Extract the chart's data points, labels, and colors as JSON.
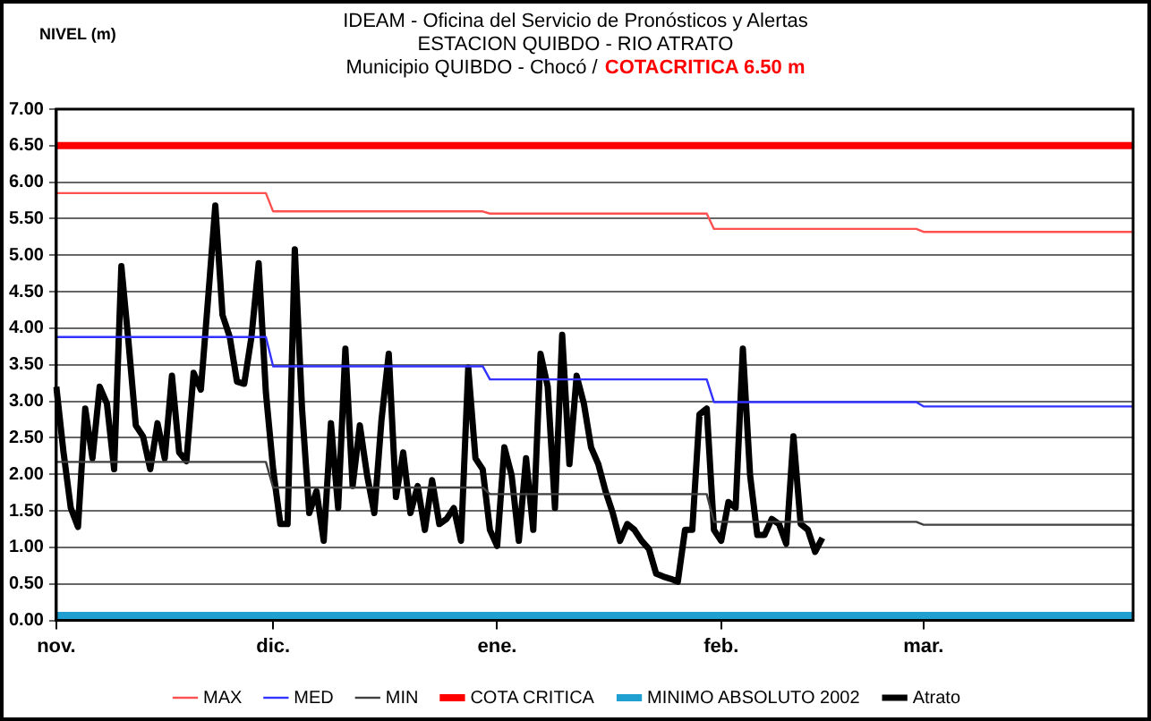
{
  "chart_data": {
    "type": "line",
    "title": "IDEAM - Oficina del Servicio de Pronósticos y Alertas",
    "subtitle": "ESTACION QUIBDO - RIO ATRATO",
    "annotations": [
      "Municipio QUIBDO - Chocó /",
      "COTACRITICA 6.50 m"
    ],
    "ylabel": "NIVEL (m)",
    "categories": [
      "nov.",
      null,
      null,
      null,
      null,
      null,
      null,
      null,
      null,
      null,
      null,
      null,
      null,
      null,
      null,
      null,
      null,
      null,
      null,
      null,
      null,
      null,
      null,
      null,
      null,
      null,
      null,
      null,
      null,
      null,
      "dic.",
      null,
      null,
      null,
      null,
      null,
      null,
      null,
      null,
      null,
      null,
      null,
      null,
      null,
      null,
      null,
      null,
      null,
      null,
      null,
      null,
      null,
      null,
      null,
      null,
      null,
      null,
      null,
      null,
      null,
      null,
      "ene.",
      null,
      null,
      null,
      null,
      null,
      null,
      null,
      null,
      null,
      null,
      null,
      null,
      null,
      null,
      null,
      null,
      null,
      null,
      null,
      null,
      null,
      null,
      null,
      null,
      null,
      null,
      null,
      null,
      null,
      null,
      "feb.",
      null,
      null,
      null,
      null,
      null,
      null,
      null,
      null,
      null,
      null,
      null,
      null,
      null,
      null,
      null,
      null,
      null,
      null,
      null,
      null,
      null,
      null,
      null,
      null,
      null,
      null,
      null,
      "mar.",
      null,
      null,
      null,
      null,
      null,
      null,
      null,
      null,
      null,
      null,
      null,
      null,
      null,
      null,
      null,
      null,
      null,
      null,
      null,
      null,
      null,
      null,
      null,
      null,
      null,
      null,
      null,
      null,
      null
    ],
    "ylim": [
      0,
      7
    ],
    "yticks": [
      {
        "value": 0,
        "label": "0.00"
      },
      {
        "value": 0.5,
        "label": "0.50"
      },
      {
        "value": 1,
        "label": "1.00"
      },
      {
        "value": 1.5,
        "label": "1.50"
      },
      {
        "value": 2,
        "label": "2.00"
      },
      {
        "value": 2.5,
        "label": "2.50"
      },
      {
        "value": 3,
        "label": "3.00"
      },
      {
        "value": 3.5,
        "label": "3.50"
      },
      {
        "value": 4,
        "label": "4.00"
      },
      {
        "value": 4.5,
        "label": "4.50"
      },
      {
        "value": 5,
        "label": "5.00"
      },
      {
        "value": 5.5,
        "label": "5.50"
      },
      {
        "value": 6,
        "label": "6.00"
      },
      {
        "value": 6.5,
        "label": "6.50"
      },
      {
        "value": 7,
        "label": "7.00"
      }
    ],
    "grid": "y",
    "legend": "bottom",
    "marker": "none",
    "series": [
      {
        "name": "MAX",
        "color": "#ff5050",
        "values": [
          5.85,
          5.85,
          5.85,
          5.85,
          5.85,
          5.85,
          5.85,
          5.85,
          5.85,
          5.85,
          5.85,
          5.85,
          5.85,
          5.85,
          5.85,
          5.85,
          5.85,
          5.85,
          5.85,
          5.85,
          5.85,
          5.85,
          5.85,
          5.85,
          5.85,
          5.85,
          5.85,
          5.85,
          5.85,
          5.85,
          5.6,
          5.6,
          5.6,
          5.6,
          5.6,
          5.6,
          5.6,
          5.6,
          5.6,
          5.6,
          5.6,
          5.6,
          5.6,
          5.6,
          5.6,
          5.6,
          5.6,
          5.6,
          5.6,
          5.6,
          5.6,
          5.6,
          5.6,
          5.6,
          5.6,
          5.6,
          5.6,
          5.6,
          5.6,
          5.6,
          5.57,
          5.57,
          5.57,
          5.57,
          5.57,
          5.57,
          5.57,
          5.57,
          5.57,
          5.57,
          5.57,
          5.57,
          5.57,
          5.57,
          5.57,
          5.57,
          5.57,
          5.57,
          5.57,
          5.57,
          5.57,
          5.57,
          5.57,
          5.57,
          5.57,
          5.57,
          5.57,
          5.57,
          5.57,
          5.57,
          5.57,
          5.36,
          5.36,
          5.36,
          5.36,
          5.36,
          5.36,
          5.36,
          5.36,
          5.36,
          5.36,
          5.36,
          5.36,
          5.36,
          5.36,
          5.36,
          5.36,
          5.36,
          5.36,
          5.36,
          5.36,
          5.36,
          5.36,
          5.36,
          5.36,
          5.36,
          5.36,
          5.36,
          5.36,
          5.36,
          5.32,
          5.32,
          5.32,
          5.32,
          5.32,
          5.32,
          5.32,
          5.32,
          5.32,
          5.32,
          5.32,
          5.32,
          5.32,
          5.32,
          5.32,
          5.32,
          5.32,
          5.32,
          5.32,
          5.32,
          5.32,
          5.32,
          5.32,
          5.32,
          5.32,
          5.32,
          5.32,
          5.32,
          5.32,
          5.32
        ]
      },
      {
        "name": "MED",
        "color": "#3333ff",
        "values": [
          3.88,
          3.88,
          3.88,
          3.88,
          3.88,
          3.88,
          3.88,
          3.88,
          3.88,
          3.88,
          3.88,
          3.88,
          3.88,
          3.88,
          3.88,
          3.88,
          3.88,
          3.88,
          3.88,
          3.88,
          3.88,
          3.88,
          3.88,
          3.88,
          3.88,
          3.88,
          3.88,
          3.88,
          3.88,
          3.88,
          3.48,
          3.48,
          3.48,
          3.48,
          3.48,
          3.48,
          3.48,
          3.48,
          3.48,
          3.48,
          3.48,
          3.48,
          3.48,
          3.48,
          3.48,
          3.48,
          3.48,
          3.48,
          3.48,
          3.48,
          3.48,
          3.48,
          3.48,
          3.48,
          3.48,
          3.48,
          3.48,
          3.48,
          3.48,
          3.48,
          3.3,
          3.3,
          3.3,
          3.3,
          3.3,
          3.3,
          3.3,
          3.3,
          3.3,
          3.3,
          3.3,
          3.3,
          3.3,
          3.3,
          3.3,
          3.3,
          3.3,
          3.3,
          3.3,
          3.3,
          3.3,
          3.3,
          3.3,
          3.3,
          3.3,
          3.3,
          3.3,
          3.3,
          3.3,
          3.3,
          3.3,
          2.99,
          2.99,
          2.99,
          2.99,
          2.99,
          2.99,
          2.99,
          2.99,
          2.99,
          2.99,
          2.99,
          2.99,
          2.99,
          2.99,
          2.99,
          2.99,
          2.99,
          2.99,
          2.99,
          2.99,
          2.99,
          2.99,
          2.99,
          2.99,
          2.99,
          2.99,
          2.99,
          2.99,
          2.99,
          2.93,
          2.93,
          2.93,
          2.93,
          2.93,
          2.93,
          2.93,
          2.93,
          2.93,
          2.93,
          2.93,
          2.93,
          2.93,
          2.93,
          2.93,
          2.93,
          2.93,
          2.93,
          2.93,
          2.93,
          2.93,
          2.93,
          2.93,
          2.93,
          2.93,
          2.93,
          2.93,
          2.93,
          2.93,
          2.93
        ]
      },
      {
        "name": "MIN",
        "color": "#404040",
        "values": [
          2.17,
          2.17,
          2.17,
          2.17,
          2.17,
          2.17,
          2.17,
          2.17,
          2.17,
          2.17,
          2.17,
          2.17,
          2.17,
          2.17,
          2.17,
          2.17,
          2.17,
          2.17,
          2.17,
          2.17,
          2.17,
          2.17,
          2.17,
          2.17,
          2.17,
          2.17,
          2.17,
          2.17,
          2.17,
          2.17,
          1.82,
          1.82,
          1.82,
          1.82,
          1.82,
          1.82,
          1.82,
          1.82,
          1.82,
          1.82,
          1.82,
          1.82,
          1.82,
          1.82,
          1.82,
          1.82,
          1.82,
          1.82,
          1.82,
          1.82,
          1.82,
          1.82,
          1.82,
          1.82,
          1.82,
          1.82,
          1.82,
          1.82,
          1.82,
          1.82,
          1.73,
          1.73,
          1.73,
          1.73,
          1.73,
          1.73,
          1.73,
          1.73,
          1.73,
          1.73,
          1.73,
          1.73,
          1.73,
          1.73,
          1.73,
          1.73,
          1.73,
          1.73,
          1.73,
          1.73,
          1.73,
          1.73,
          1.73,
          1.73,
          1.73,
          1.73,
          1.73,
          1.73,
          1.73,
          1.73,
          1.73,
          1.35,
          1.35,
          1.35,
          1.35,
          1.35,
          1.35,
          1.35,
          1.35,
          1.35,
          1.35,
          1.35,
          1.35,
          1.35,
          1.35,
          1.35,
          1.35,
          1.35,
          1.35,
          1.35,
          1.35,
          1.35,
          1.35,
          1.35,
          1.35,
          1.35,
          1.35,
          1.35,
          1.35,
          1.35,
          1.31,
          1.31,
          1.31,
          1.31,
          1.31,
          1.31,
          1.31,
          1.31,
          1.31,
          1.31,
          1.31,
          1.31,
          1.31,
          1.31,
          1.31,
          1.31,
          1.31,
          1.31,
          1.31,
          1.31,
          1.31,
          1.31,
          1.31,
          1.31,
          1.31,
          1.31,
          1.31,
          1.31,
          1.31,
          1.31
        ]
      },
      {
        "name": "COTA CRITICA",
        "color": "#ff0000",
        "values": [
          6.5,
          6.5,
          6.5,
          6.5,
          6.5,
          6.5,
          6.5,
          6.5,
          6.5,
          6.5,
          6.5,
          6.5,
          6.5,
          6.5,
          6.5,
          6.5,
          6.5,
          6.5,
          6.5,
          6.5,
          6.5,
          6.5,
          6.5,
          6.5,
          6.5,
          6.5,
          6.5,
          6.5,
          6.5,
          6.5,
          6.5,
          6.5,
          6.5,
          6.5,
          6.5,
          6.5,
          6.5,
          6.5,
          6.5,
          6.5,
          6.5,
          6.5,
          6.5,
          6.5,
          6.5,
          6.5,
          6.5,
          6.5,
          6.5,
          6.5,
          6.5,
          6.5,
          6.5,
          6.5,
          6.5,
          6.5,
          6.5,
          6.5,
          6.5,
          6.5,
          6.5,
          6.5,
          6.5,
          6.5,
          6.5,
          6.5,
          6.5,
          6.5,
          6.5,
          6.5,
          6.5,
          6.5,
          6.5,
          6.5,
          6.5,
          6.5,
          6.5,
          6.5,
          6.5,
          6.5,
          6.5,
          6.5,
          6.5,
          6.5,
          6.5,
          6.5,
          6.5,
          6.5,
          6.5,
          6.5,
          6.5,
          6.5,
          6.5,
          6.5,
          6.5,
          6.5,
          6.5,
          6.5,
          6.5,
          6.5,
          6.5,
          6.5,
          6.5,
          6.5,
          6.5,
          6.5,
          6.5,
          6.5,
          6.5,
          6.5,
          6.5,
          6.5,
          6.5,
          6.5,
          6.5,
          6.5,
          6.5,
          6.5,
          6.5,
          6.5,
          6.5,
          6.5,
          6.5,
          6.5,
          6.5,
          6.5,
          6.5,
          6.5,
          6.5,
          6.5,
          6.5,
          6.5,
          6.5,
          6.5,
          6.5,
          6.5,
          6.5,
          6.5,
          6.5,
          6.5,
          6.5,
          6.5,
          6.5,
          6.5,
          6.5,
          6.5,
          6.5,
          6.5,
          6.5,
          6.5
        ]
      },
      {
        "name": "MINIMO ABSOLUTO 2002",
        "color": "#1fa0d0",
        "values": [
          0.07,
          0.07,
          0.07,
          0.07,
          0.07,
          0.07,
          0.07,
          0.07,
          0.07,
          0.07,
          0.07,
          0.07,
          0.07,
          0.07,
          0.07,
          0.07,
          0.07,
          0.07,
          0.07,
          0.07,
          0.07,
          0.07,
          0.07,
          0.07,
          0.07,
          0.07,
          0.07,
          0.07,
          0.07,
          0.07,
          0.07,
          0.07,
          0.07,
          0.07,
          0.07,
          0.07,
          0.07,
          0.07,
          0.07,
          0.07,
          0.07,
          0.07,
          0.07,
          0.07,
          0.07,
          0.07,
          0.07,
          0.07,
          0.07,
          0.07,
          0.07,
          0.07,
          0.07,
          0.07,
          0.07,
          0.07,
          0.07,
          0.07,
          0.07,
          0.07,
          0.07,
          0.07,
          0.07,
          0.07,
          0.07,
          0.07,
          0.07,
          0.07,
          0.07,
          0.07,
          0.07,
          0.07,
          0.07,
          0.07,
          0.07,
          0.07,
          0.07,
          0.07,
          0.07,
          0.07,
          0.07,
          0.07,
          0.07,
          0.07,
          0.07,
          0.07,
          0.07,
          0.07,
          0.07,
          0.07,
          0.07,
          0.07,
          0.07,
          0.07,
          0.07,
          0.07,
          0.07,
          0.07,
          0.07,
          0.07,
          0.07,
          0.07,
          0.07,
          0.07,
          0.07,
          0.07,
          0.07,
          0.07,
          0.07,
          0.07,
          0.07,
          0.07,
          0.07,
          0.07,
          0.07,
          0.07,
          0.07,
          0.07,
          0.07,
          0.07,
          0.07,
          0.07,
          0.07,
          0.07,
          0.07,
          0.07,
          0.07,
          0.07,
          0.07,
          0.07,
          0.07,
          0.07,
          0.07,
          0.07,
          0.07,
          0.07,
          0.07,
          0.07,
          0.07,
          0.07,
          0.07,
          0.07,
          0.07,
          0.07,
          0.07,
          0.07,
          0.07,
          0.07,
          0.07,
          0.07
        ]
      },
      {
        "name": "Atrato",
        "color": "#000000",
        "values": [
          3.2,
          2.3,
          1.54,
          1.28,
          2.9,
          2.22,
          3.2,
          2.97,
          2.07,
          4.85,
          3.8,
          2.67,
          2.52,
          2.07,
          2.7,
          2.22,
          3.35,
          2.3,
          2.18,
          3.39,
          3.16,
          4.4,
          5.68,
          4.18,
          3.88,
          3.27,
          3.24,
          3.88,
          4.89,
          3.12,
          2.07,
          1.32,
          1.32,
          5.08,
          2.9,
          1.47,
          1.77,
          1.09,
          2.7,
          1.54,
          3.72,
          1.84,
          2.67,
          1.99,
          1.47,
          2.75,
          3.65,
          1.69,
          2.3,
          1.47,
          1.84,
          1.24,
          1.92,
          1.32,
          1.39,
          1.54,
          1.09,
          3.46,
          2.22,
          2.07,
          1.24,
          1.02,
          2.37,
          1.99,
          1.09,
          2.22,
          1.24,
          3.65,
          3.2,
          1.54,
          3.91,
          2.14,
          3.35,
          2.97,
          2.37,
          2.14,
          1.77,
          1.47,
          1.09,
          1.32,
          1.24,
          1.09,
          0.98,
          0.64,
          0.6,
          0.57,
          0.53,
          1.24,
          1.24,
          2.82,
          2.9,
          1.24,
          1.09,
          1.62,
          1.54,
          3.72,
          1.99,
          1.17,
          1.17,
          1.39,
          1.32,
          1.05,
          2.52,
          1.32,
          1.24,
          0.94,
          1.13,
          null,
          null,
          null,
          null,
          null,
          null,
          null,
          null,
          null,
          null,
          null,
          null,
          null,
          null,
          null,
          null,
          null,
          null,
          null,
          null,
          null,
          null,
          null,
          null,
          null,
          null,
          null,
          null,
          null,
          null,
          null,
          null,
          null,
          null,
          null,
          null,
          null,
          null,
          null,
          null,
          null,
          null,
          null
        ]
      }
    ]
  }
}
